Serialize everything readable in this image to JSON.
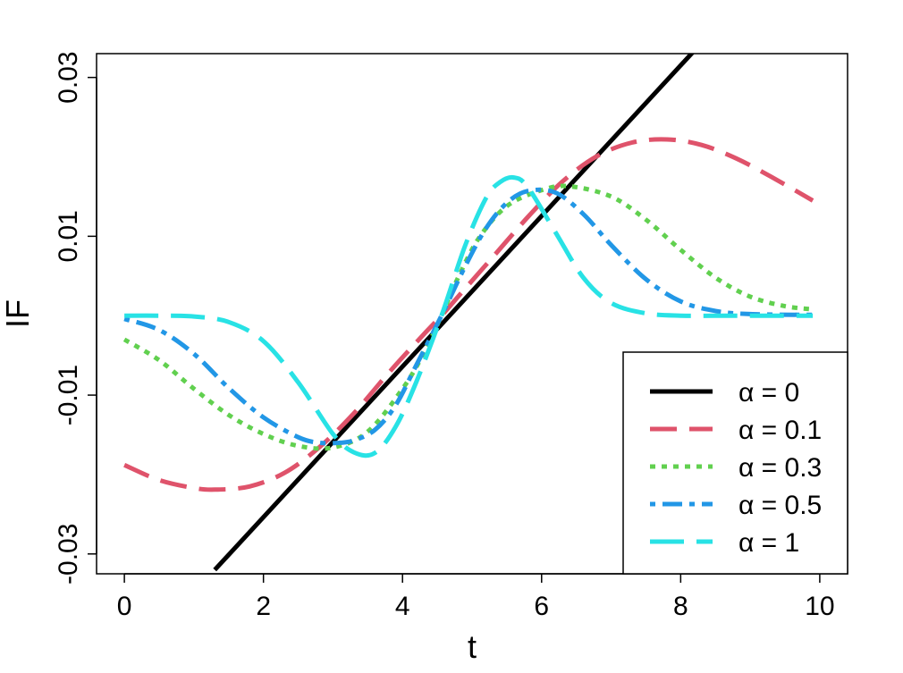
{
  "chart_data": {
    "type": "line",
    "xlabel": "t",
    "ylabel": "IF",
    "xlim": [
      -0.4,
      10.4
    ],
    "ylim": [
      -0.0325,
      0.033
    ],
    "xticks": [
      0,
      2,
      4,
      6,
      8,
      10
    ],
    "xtick_labels": [
      "0",
      "2",
      "4",
      "6",
      "8",
      "10"
    ],
    "yticks": [
      -0.03,
      -0.01,
      0.01,
      0.03
    ],
    "ytick_labels": [
      "-0.03",
      "-0.01",
      "0.01",
      "0.03"
    ],
    "grid": false,
    "legend_position": "bottom-right",
    "series": [
      {
        "name": "α = 0",
        "color": "#000000",
        "dash": "solid",
        "x": [
          1.3,
          9.95
        ],
        "y": [
          -0.032,
          0.05
        ]
      },
      {
        "name": "α = 0.1",
        "color": "#DF536B",
        "dash": "dashed",
        "x": [
          0,
          0.5,
          1.0,
          1.3,
          1.8,
          2.3,
          2.8,
          3.3,
          3.8,
          4.3,
          4.56,
          4.8,
          5.3,
          5.8,
          6.3,
          6.8,
          7.3,
          7.8,
          8.3,
          8.8,
          9.3,
          9.9
        ],
        "y": [
          -0.0188,
          -0.0207,
          -0.0217,
          -0.0219,
          -0.0215,
          -0.0198,
          -0.0166,
          -0.0123,
          -0.0072,
          -0.0024,
          0.0,
          0.0024,
          0.0074,
          0.0124,
          0.0169,
          0.0201,
          0.0218,
          0.0222,
          0.0215,
          0.0198,
          0.0175,
          0.0145
        ]
      },
      {
        "name": "α = 0.3",
        "color": "#61D04F",
        "dash": "dotted",
        "x": [
          0,
          0.5,
          1.0,
          1.5,
          2.0,
          2.5,
          3.0,
          3.5,
          4.0,
          4.3,
          4.56,
          4.8,
          5.1,
          5.5,
          6.0,
          6.4,
          7.0,
          7.5,
          8.0,
          8.5,
          9.0,
          9.5,
          9.9
        ],
        "y": [
          -0.003,
          -0.0056,
          -0.0092,
          -0.0125,
          -0.0149,
          -0.0164,
          -0.0166,
          -0.0146,
          -0.0092,
          -0.0048,
          0.0,
          0.0048,
          0.0098,
          0.0138,
          0.0158,
          0.0163,
          0.015,
          0.0121,
          0.0083,
          0.0048,
          0.0024,
          0.0012,
          0.0008
        ]
      },
      {
        "name": "α = 0.5",
        "color": "#2297E6",
        "dash": "dotdash",
        "x": [
          0,
          0.5,
          1.0,
          1.5,
          2.0,
          2.5,
          2.8,
          3.1,
          3.3,
          3.6,
          3.9,
          4.2,
          4.56,
          4.9,
          5.2,
          5.5,
          5.8,
          6.2,
          6.6,
          7.0,
          7.5,
          8.0,
          8.5,
          9.0,
          9.9
        ],
        "y": [
          -0.0004,
          -0.0018,
          -0.0048,
          -0.0091,
          -0.0128,
          -0.0153,
          -0.016,
          -0.016,
          -0.0157,
          -0.0144,
          -0.0113,
          -0.0062,
          0.0,
          0.0062,
          0.011,
          0.0142,
          0.0157,
          0.0155,
          0.0128,
          0.0089,
          0.0046,
          0.0018,
          0.0006,
          0.0002,
          0.0001
        ]
      },
      {
        "name": "α = 1",
        "color": "#28E2E5",
        "dash": "longdash",
        "x": [
          0,
          0.5,
          1.0,
          1.5,
          2.0,
          2.5,
          3.0,
          3.3,
          3.6,
          3.9,
          4.2,
          4.56,
          4.9,
          5.2,
          5.4,
          5.6,
          5.8,
          6.2,
          6.6,
          7.0,
          7.5,
          8.0,
          8.5,
          9.0,
          9.9
        ],
        "y": [
          0.0,
          0.0,
          -0.0001,
          -0.0008,
          -0.0032,
          -0.0084,
          -0.0149,
          -0.0172,
          -0.0173,
          -0.014,
          -0.0083,
          0.0,
          0.0088,
          0.0148,
          0.0168,
          0.0174,
          0.0162,
          0.0105,
          0.0048,
          0.0016,
          0.0003,
          0.0,
          0.0,
          0.0,
          0.0
        ]
      }
    ]
  }
}
